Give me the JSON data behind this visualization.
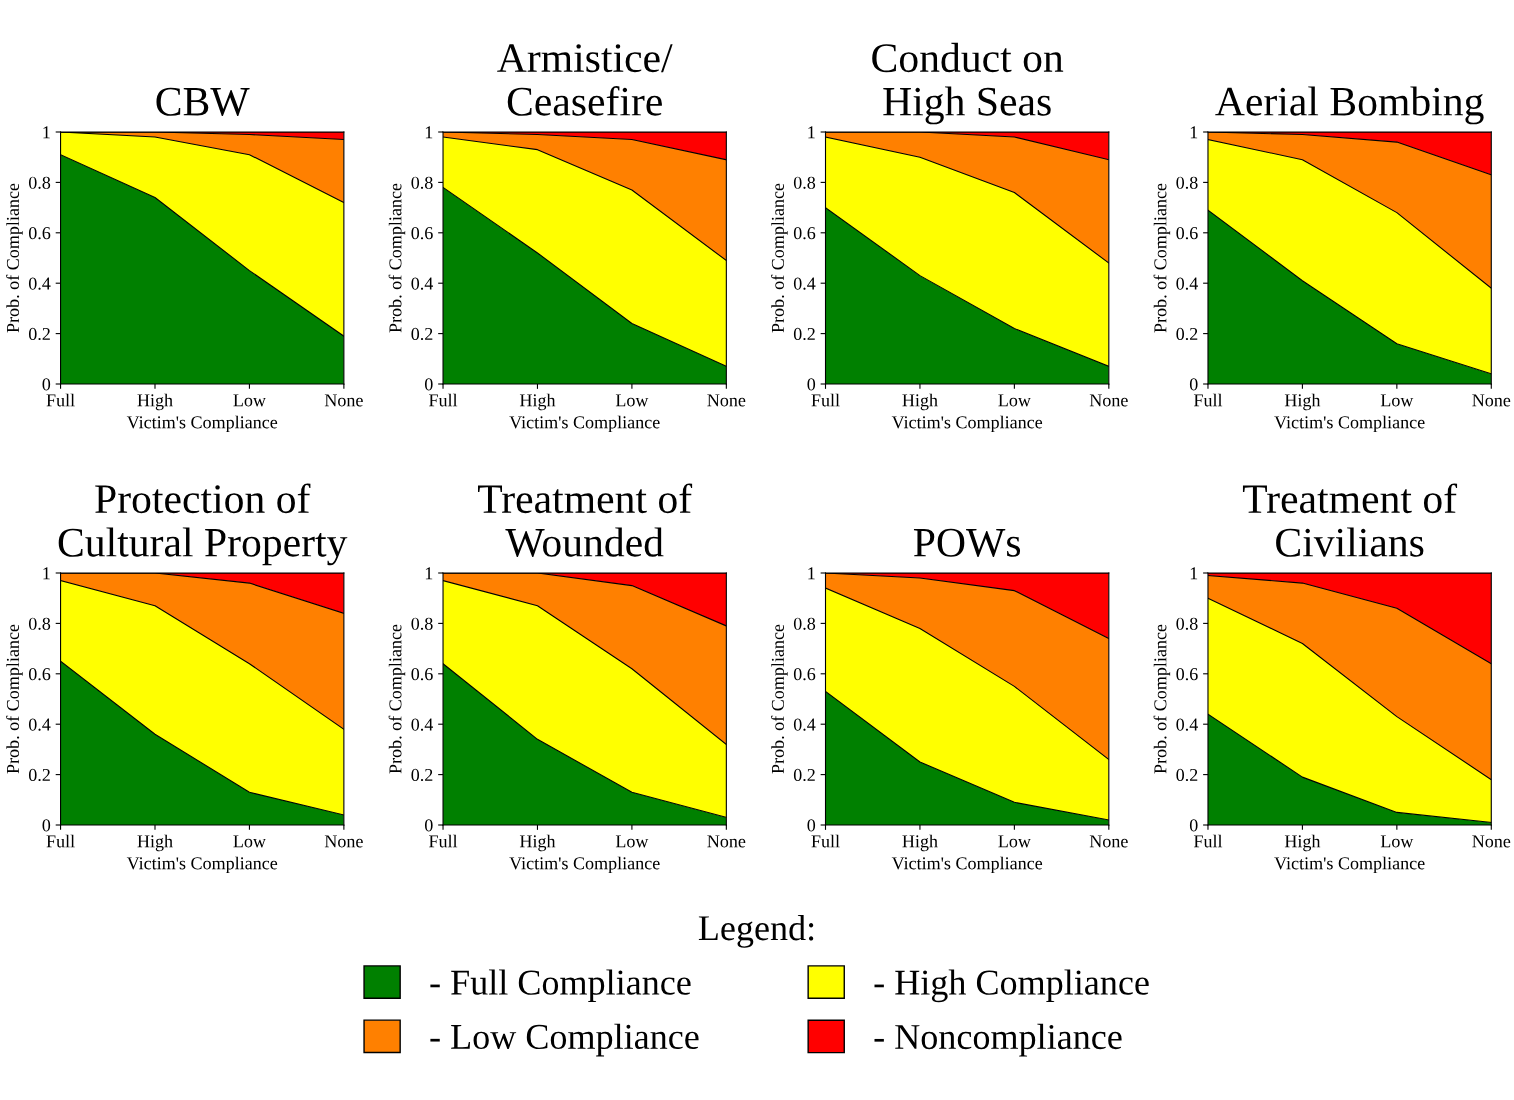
{
  "chart_data": [
    {
      "type": "area",
      "stacked": true,
      "title": "CBW",
      "xlabel": "Victim's Compliance",
      "ylabel": "Prob. of Compliance",
      "categories": [
        "Full",
        "High",
        "Low",
        "None"
      ],
      "ylim": [
        0,
        1
      ],
      "yticks": [
        0,
        0.2,
        0.4,
        0.6,
        0.8,
        1
      ],
      "grid": false,
      "legend": "bottom",
      "legend_title": "Legend:",
      "series": [
        {
          "name": "- Full Compliance",
          "color": "#008000",
          "values": [
            0.91,
            0.74,
            0.45,
            0.19
          ]
        },
        {
          "name": "- High Compliance",
          "color": "#ffff00",
          "values": [
            0.09,
            0.24,
            0.46,
            0.53
          ]
        },
        {
          "name": "- Low Compliance",
          "color": "#ff8000",
          "values": [
            0,
            0.02,
            0.08,
            0.25
          ]
        },
        {
          "name": "- Noncompliance",
          "color": "#ff0000",
          "values": [
            0,
            0,
            0.01,
            0.03
          ]
        }
      ]
    },
    {
      "type": "area",
      "stacked": true,
      "title": "Armistice/\nCeasefire",
      "xlabel": "Victim's Compliance",
      "ylabel": "Prob. of Compliance",
      "categories": [
        "Full",
        "High",
        "Low",
        "None"
      ],
      "ylim": [
        0,
        1
      ],
      "yticks": [
        0,
        0.2,
        0.4,
        0.6,
        0.8,
        1
      ],
      "grid": false,
      "series": [
        {
          "color": "#008000",
          "values": [
            0.78,
            0.52,
            0.24,
            0.07
          ]
        },
        {
          "color": "#ffff00",
          "values": [
            0.2,
            0.41,
            0.53,
            0.42
          ]
        },
        {
          "color": "#ff8000",
          "values": [
            0.02,
            0.06,
            0.2,
            0.4
          ]
        },
        {
          "color": "#ff0000",
          "values": [
            0,
            0.01,
            0.03,
            0.11
          ]
        }
      ]
    },
    {
      "type": "area",
      "stacked": true,
      "title": "Conduct on\nHigh Seas",
      "xlabel": "Victim's Compliance",
      "ylabel": "Prob. of Compliance",
      "categories": [
        "Full",
        "High",
        "Low",
        "None"
      ],
      "ylim": [
        0,
        1
      ],
      "yticks": [
        0,
        0.2,
        0.4,
        0.6,
        0.8,
        1
      ],
      "grid": false,
      "series": [
        {
          "color": "#008000",
          "values": [
            0.7,
            0.43,
            0.22,
            0.07
          ]
        },
        {
          "color": "#ffff00",
          "values": [
            0.28,
            0.47,
            0.54,
            0.41
          ]
        },
        {
          "color": "#ff8000",
          "values": [
            0.02,
            0.1,
            0.22,
            0.41
          ]
        },
        {
          "color": "#ff0000",
          "values": [
            0,
            0,
            0.02,
            0.11
          ]
        }
      ]
    },
    {
      "type": "area",
      "stacked": true,
      "title": "Aerial Bombing",
      "xlabel": "Victim's Compliance",
      "ylabel": "Prob. of Compliance",
      "categories": [
        "Full",
        "High",
        "Low",
        "None"
      ],
      "ylim": [
        0,
        1
      ],
      "yticks": [
        0,
        0.2,
        0.4,
        0.6,
        0.8,
        1
      ],
      "grid": false,
      "series": [
        {
          "color": "#008000",
          "values": [
            0.69,
            0.41,
            0.16,
            0.04
          ]
        },
        {
          "color": "#ffff00",
          "values": [
            0.28,
            0.48,
            0.52,
            0.34
          ]
        },
        {
          "color": "#ff8000",
          "values": [
            0.03,
            0.1,
            0.28,
            0.45
          ]
        },
        {
          "color": "#ff0000",
          "values": [
            0,
            0.01,
            0.04,
            0.17
          ]
        }
      ]
    },
    {
      "type": "area",
      "stacked": true,
      "title": "Protection of\nCultural Property",
      "xlabel": "Victim's Compliance",
      "ylabel": "Prob. of Compliance",
      "categories": [
        "Full",
        "High",
        "Low",
        "None"
      ],
      "ylim": [
        0,
        1
      ],
      "yticks": [
        0,
        0.2,
        0.4,
        0.6,
        0.8,
        1
      ],
      "grid": false,
      "series": [
        {
          "color": "#008000",
          "values": [
            0.65,
            0.36,
            0.13,
            0.04
          ]
        },
        {
          "color": "#ffff00",
          "values": [
            0.32,
            0.51,
            0.51,
            0.34
          ]
        },
        {
          "color": "#ff8000",
          "values": [
            0.03,
            0.13,
            0.32,
            0.46
          ]
        },
        {
          "color": "#ff0000",
          "values": [
            0,
            0,
            0.04,
            0.16
          ]
        }
      ]
    },
    {
      "type": "area",
      "stacked": true,
      "title": "Treatment of\nWounded",
      "xlabel": "Victim's Compliance",
      "ylabel": "Prob. of Compliance",
      "categories": [
        "Full",
        "High",
        "Low",
        "None"
      ],
      "ylim": [
        0,
        1
      ],
      "yticks": [
        0,
        0.2,
        0.4,
        0.6,
        0.8,
        1
      ],
      "grid": false,
      "series": [
        {
          "color": "#008000",
          "values": [
            0.64,
            0.34,
            0.13,
            0.03
          ]
        },
        {
          "color": "#ffff00",
          "values": [
            0.33,
            0.53,
            0.49,
            0.29
          ]
        },
        {
          "color": "#ff8000",
          "values": [
            0.03,
            0.13,
            0.33,
            0.47
          ]
        },
        {
          "color": "#ff0000",
          "values": [
            0,
            0,
            0.05,
            0.21
          ]
        }
      ]
    },
    {
      "type": "area",
      "stacked": true,
      "title": "POWs",
      "xlabel": "Victim's Compliance",
      "ylabel": "Prob. of Compliance",
      "categories": [
        "Full",
        "High",
        "Low",
        "None"
      ],
      "ylim": [
        0,
        1
      ],
      "yticks": [
        0,
        0.2,
        0.4,
        0.6,
        0.8,
        1
      ],
      "grid": false,
      "series": [
        {
          "color": "#008000",
          "values": [
            0.53,
            0.25,
            0.09,
            0.02
          ]
        },
        {
          "color": "#ffff00",
          "values": [
            0.41,
            0.53,
            0.46,
            0.24
          ]
        },
        {
          "color": "#ff8000",
          "values": [
            0.06,
            0.2,
            0.38,
            0.48
          ]
        },
        {
          "color": "#ff0000",
          "values": [
            0,
            0.02,
            0.07,
            0.26
          ]
        }
      ]
    },
    {
      "type": "area",
      "stacked": true,
      "title": "Treatment of\nCivilians",
      "xlabel": "Victim's Compliance",
      "ylabel": "Prob. of Compliance",
      "categories": [
        "Full",
        "High",
        "Low",
        "None"
      ],
      "ylim": [
        0,
        1
      ],
      "yticks": [
        0,
        0.2,
        0.4,
        0.6,
        0.8,
        1
      ],
      "grid": false,
      "series": [
        {
          "color": "#008000",
          "values": [
            0.44,
            0.19,
            0.05,
            0.01
          ]
        },
        {
          "color": "#ffff00",
          "values": [
            0.46,
            0.53,
            0.38,
            0.17
          ]
        },
        {
          "color": "#ff8000",
          "values": [
            0.09,
            0.24,
            0.43,
            0.46
          ]
        },
        {
          "color": "#ff0000",
          "values": [
            0.01,
            0.04,
            0.14,
            0.36
          ]
        }
      ]
    }
  ]
}
